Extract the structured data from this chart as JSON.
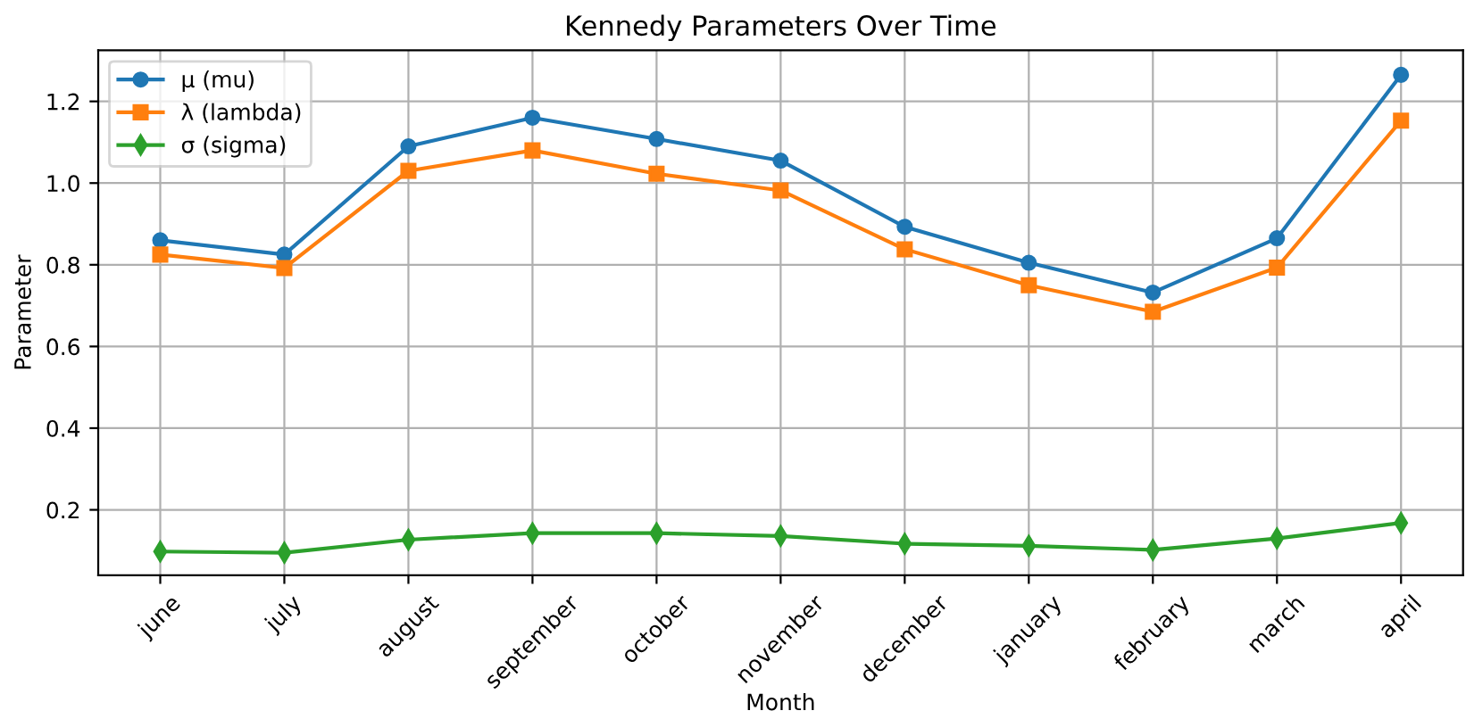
{
  "chart_data": {
    "type": "line",
    "title": "Kennedy Parameters Over Time",
    "xlabel": "Month",
    "ylabel": "Parameter",
    "categories": [
      "june",
      "july",
      "august",
      "september",
      "october",
      "november",
      "december",
      "january",
      "february",
      "march",
      "april"
    ],
    "series": [
      {
        "name": "μ (mu)",
        "color": "#1f77b4",
        "marker": "circle",
        "values": [
          0.86,
          0.825,
          1.09,
          1.16,
          1.108,
          1.055,
          0.893,
          0.805,
          0.732,
          0.865,
          1.265
        ]
      },
      {
        "name": "λ (lambda)",
        "color": "#ff7f0e",
        "marker": "square",
        "values": [
          0.825,
          0.792,
          1.03,
          1.08,
          1.023,
          0.982,
          0.838,
          0.75,
          0.685,
          0.793,
          1.153
        ]
      },
      {
        "name": "σ (sigma)",
        "color": "#2ca02c",
        "marker": "diamond",
        "values": [
          0.098,
          0.095,
          0.127,
          0.143,
          0.143,
          0.136,
          0.117,
          0.112,
          0.102,
          0.13,
          0.168
        ]
      }
    ],
    "ylim": [
      0.04,
      1.325
    ],
    "yticks": [
      0.2,
      0.4,
      0.6,
      0.8,
      {
        "value": 1.0,
        "label": "1.0"
      },
      1.2
    ],
    "grid": true,
    "legend": "top left",
    "line_style": "solid"
  }
}
